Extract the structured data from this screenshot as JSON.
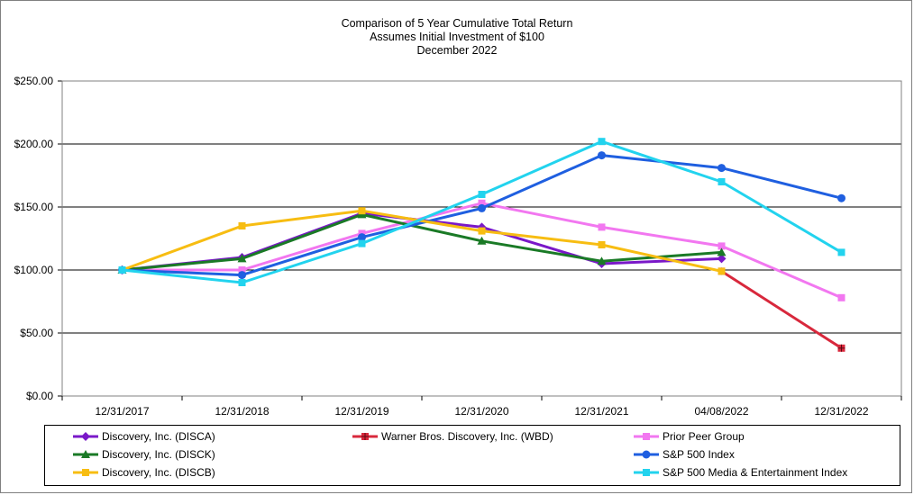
{
  "chart_data": {
    "type": "line",
    "title": [
      "Comparison of 5 Year Cumulative Total Return",
      "Assumes Initial Investment of $100",
      "December 2022"
    ],
    "categories": [
      "12/31/2017",
      "12/31/2018",
      "12/31/2019",
      "12/31/2020",
      "12/31/2021",
      "04/08/2022",
      "12/31/2022"
    ],
    "ylim": [
      0,
      250
    ],
    "yticks": [
      0,
      50,
      100,
      150,
      200,
      250
    ],
    "ytick_labels": [
      "$0.00",
      "$50.00",
      "$100.00",
      "$150.00",
      "$200.00",
      "$250.00"
    ],
    "grid": true,
    "legend_position": "bottom",
    "series": [
      {
        "name": "Discovery, Inc. (DISCA)",
        "color": "#7a18c8",
        "marker": "diamond",
        "values": [
          100,
          110,
          145,
          134,
          105,
          109,
          null
        ]
      },
      {
        "name": "Warner Bros. Discovery, Inc. (WBD)",
        "color": "#d8283c",
        "marker": "square-cross",
        "values": [
          null,
          null,
          null,
          null,
          null,
          99,
          38
        ]
      },
      {
        "name": "Prior Peer Group",
        "color": "#f277f0",
        "marker": "square",
        "values": [
          100,
          100,
          129,
          153,
          134,
          119,
          78
        ]
      },
      {
        "name": "Discovery, Inc. (DISCK)",
        "color": "#1a7a26",
        "marker": "triangle",
        "values": [
          100,
          109,
          144,
          123,
          107,
          114,
          null
        ]
      },
      {
        "name": "S&P 500 Index",
        "color": "#1f5fe0",
        "marker": "circle",
        "values": [
          100,
          96,
          126,
          149,
          191,
          181,
          157
        ]
      },
      {
        "name": "Discovery, Inc. (DISCB)",
        "color": "#f7bd12",
        "marker": "square",
        "values": [
          100,
          135,
          147,
          131,
          120,
          99,
          null
        ]
      },
      {
        "name": "S&P 500 Media & Entertainment Index",
        "color": "#22d3ee",
        "marker": "square",
        "values": [
          100,
          90,
          121,
          160,
          202,
          170,
          114
        ]
      }
    ]
  }
}
